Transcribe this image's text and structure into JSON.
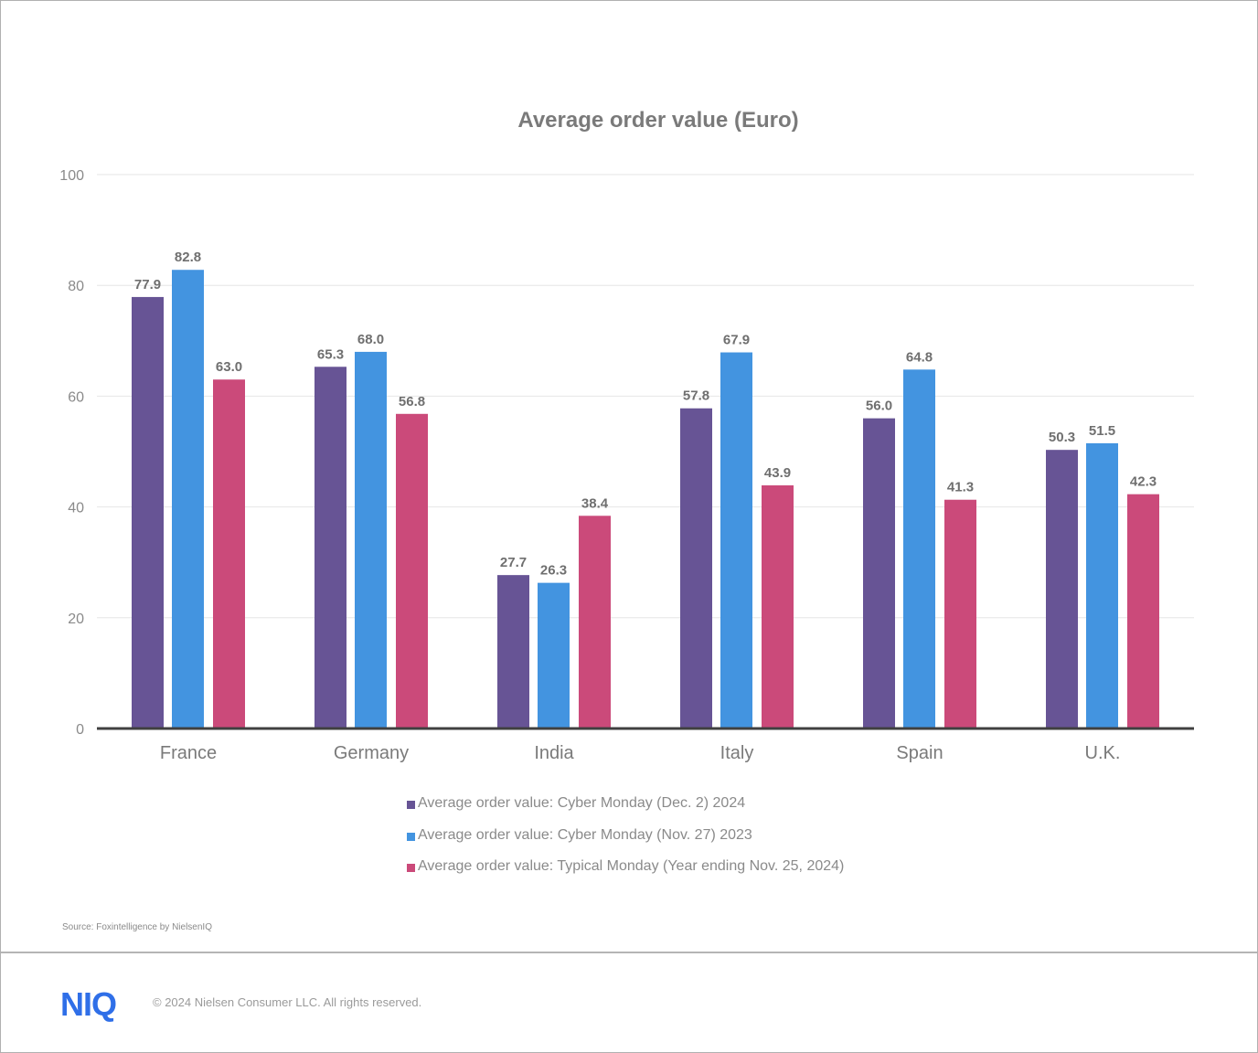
{
  "chart_data": {
    "type": "bar",
    "title": "Average order value (Euro)",
    "categories": [
      "France",
      "Germany",
      "India",
      "Italy",
      "Spain",
      "U.K."
    ],
    "series": [
      {
        "name": "Average order value: Cyber Monday (Dec. 2) 2024",
        "color": "#675495",
        "values": [
          77.9,
          65.3,
          27.7,
          57.8,
          56.0,
          50.3
        ]
      },
      {
        "name": "Average order value: Cyber Monday (Nov. 27) 2023",
        "color": "#4394e0",
        "values": [
          82.8,
          68.0,
          26.3,
          67.9,
          64.8,
          51.5
        ]
      },
      {
        "name": "Average order value: Typical Monday (Year ending Nov. 25, 2024)",
        "color": "#cb4a7a",
        "values": [
          63.0,
          56.8,
          38.4,
          43.9,
          41.3,
          42.3
        ]
      }
    ],
    "ylim": [
      0,
      100
    ],
    "yticks": [
      0,
      20,
      40,
      60,
      80,
      100
    ],
    "grid": true,
    "legend": "bottom"
  },
  "source": "Source: Foxintelligence by NielsenIQ",
  "footer": {
    "logo": "NIQ",
    "copyright": "© 2024 Nielsen Consumer LLC. All rights reserved."
  }
}
